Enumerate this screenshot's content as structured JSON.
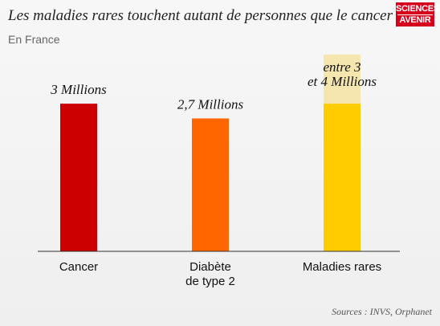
{
  "header": {
    "title": "Les maladies rares touchent autant de personnes que le cancer",
    "subtitle": "En France"
  },
  "logo": {
    "line1": "SCIENCES",
    "line2": "AVENIR"
  },
  "footer": {
    "source": "Sources : INVS, Orphanet"
  },
  "chart_data": {
    "type": "bar",
    "title": "Les maladies rares touchent autant de personnes que le cancer",
    "subtitle": "En France",
    "unit": "millions",
    "categories": [
      {
        "lines": [
          "Cancer"
        ]
      },
      {
        "lines": [
          "Diabète",
          "de type 2"
        ]
      },
      {
        "lines": [
          "Maladies rares"
        ]
      }
    ],
    "values": [
      3,
      2.7,
      3
    ],
    "value_labels": [
      {
        "lines": [
          "3 Millions"
        ]
      },
      {
        "lines": [
          "2,7 Millions"
        ]
      },
      {
        "lines": [
          "entre 3",
          "et 4 Millions"
        ]
      }
    ],
    "ranges": [
      null,
      null,
      [
        3,
        4
      ]
    ],
    "ylim": [
      0,
      4
    ],
    "colors": [
      "#cc0000",
      "#ff6600",
      "#ffcc00"
    ],
    "range_color": "#f5e6b0",
    "grid": false,
    "legend": "none"
  }
}
